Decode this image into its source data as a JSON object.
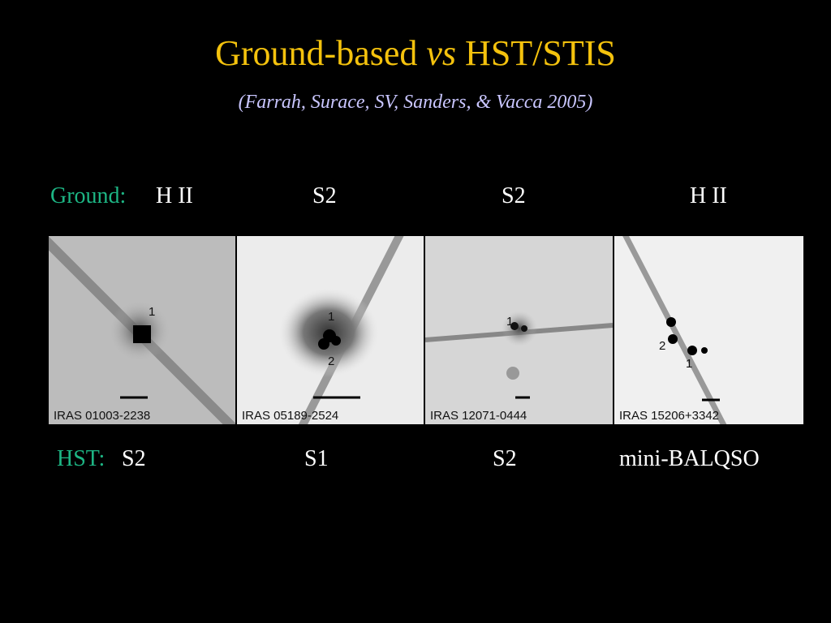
{
  "title": {
    "main": "Ground-based",
    "italic": "vs",
    "rest": "HST/STIS"
  },
  "subtitle": "(Farrah, Surace, SV, Sanders, & Vacca 2005)",
  "ground": {
    "label": "Ground:",
    "classes": [
      "H II",
      "S2",
      "S2",
      "H II"
    ]
  },
  "hst": {
    "label": "HST:",
    "classes": [
      "S2",
      "S1",
      "S2",
      "mini-BALQSO"
    ]
  },
  "panels": [
    {
      "name": "IRAS 01003-2238",
      "markers": [
        "1"
      ]
    },
    {
      "name": "IRAS 05189-2524",
      "markers": [
        "1",
        "2"
      ]
    },
    {
      "name": "IRAS 12071-0444",
      "markers": [
        "1"
      ]
    },
    {
      "name": "IRAS 15206+3342",
      "markers": [
        "2",
        "1"
      ]
    }
  ]
}
